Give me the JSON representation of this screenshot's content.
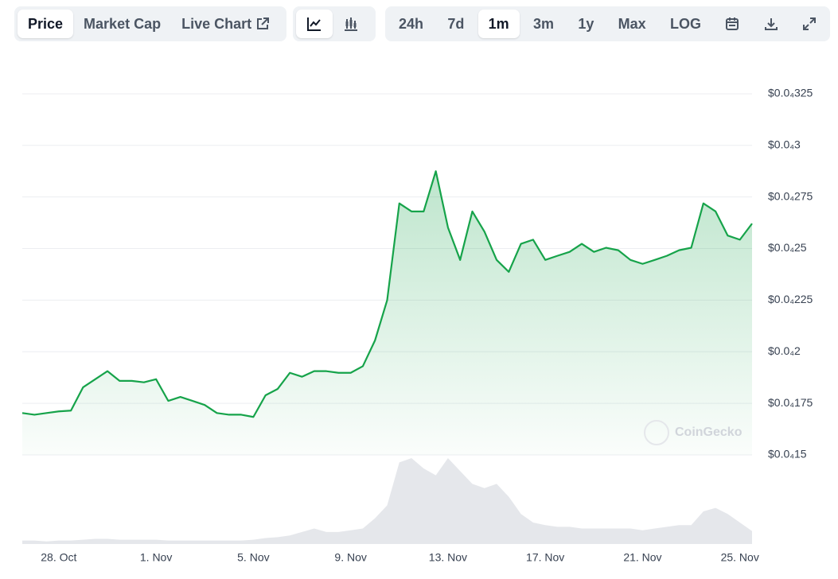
{
  "toolbar": {
    "view": [
      "Price",
      "Market Cap",
      "Live Chart"
    ],
    "ranges": [
      "24h",
      "7d",
      "1m",
      "3m",
      "1y",
      "Max",
      "LOG"
    ]
  },
  "chart_data": {
    "type": "line",
    "watermark": "CoinGecko",
    "categories": [
      null,
      null,
      null,
      "28. Oct",
      null,
      null,
      null,
      null,
      null,
      null,
      null,
      "1. Nov",
      null,
      null,
      null,
      null,
      null,
      null,
      null,
      "5. Nov",
      null,
      null,
      null,
      null,
      null,
      null,
      null,
      "9. Nov",
      null,
      null,
      null,
      null,
      null,
      null,
      null,
      "13. Nov",
      null,
      null,
      null,
      null,
      null,
      null,
      null,
      "17. Nov",
      null,
      null,
      null,
      null,
      null,
      null,
      null,
      "21. Nov",
      null,
      null,
      null,
      null,
      null,
      null,
      null,
      "25. Nov",
      null
    ],
    "values": [
      1.703e-05,
      1.695e-05,
      1.703e-05,
      1.711e-05,
      1.715e-05,
      1.828e-05,
      1.867e-05,
      1.906e-05,
      1.859e-05,
      1.859e-05,
      1.852e-05,
      1.867e-05,
      1.762e-05,
      1.781e-05,
      1.762e-05,
      1.742e-05,
      1.703e-05,
      1.695e-05,
      1.695e-05,
      1.684e-05,
      1.789e-05,
      1.82e-05,
      1.898e-05,
      1.879e-05,
      1.906e-05,
      1.906e-05,
      1.898e-05,
      1.898e-05,
      1.93e-05,
      2.055e-05,
      2.25e-05,
      2.719e-05,
      2.68e-05,
      2.68e-05,
      2.875e-05,
      2.602e-05,
      2.445e-05,
      2.68e-05,
      2.582e-05,
      2.445e-05,
      2.387e-05,
      2.523e-05,
      2.543e-05,
      2.445e-05,
      2.465e-05,
      2.484e-05,
      2.523e-05,
      2.484e-05,
      2.504e-05,
      2.492e-05,
      2.445e-05,
      2.426e-05,
      2.445e-05,
      2.465e-05,
      2.492e-05,
      2.504e-05,
      2.719e-05,
      2.68e-05,
      2.563e-05,
      2.543e-05,
      2.621e-05
    ],
    "color": "#16a34a",
    "volume": [
      4,
      4,
      3,
      4,
      4,
      5,
      6,
      6,
      5,
      5,
      5,
      5,
      4,
      4,
      4,
      4,
      4,
      4,
      4,
      5,
      7,
      8,
      10,
      14,
      18,
      14,
      14,
      16,
      18,
      30,
      45,
      95,
      100,
      88,
      80,
      100,
      85,
      70,
      65,
      70,
      55,
      35,
      25,
      22,
      20,
      20,
      18,
      18,
      18,
      18,
      18,
      16,
      18,
      20,
      22,
      22,
      38,
      42,
      35,
      25,
      15
    ],
    "volume_color": "#e5e7eb",
    "ylim": [
      1.5e-05,
      3.35e-05
    ],
    "yticks": [
      {
        "value": 1.5e-05,
        "label": "$0.0₄15"
      },
      {
        "value": 1.75e-05,
        "label": "$0.0₄175"
      },
      {
        "value": 2e-05,
        "label": "$0.0₄2"
      },
      {
        "value": 2.25e-05,
        "label": "$0.0₄225"
      },
      {
        "value": 2.5e-05,
        "label": "$0.0₄25"
      },
      {
        "value": 2.75e-05,
        "label": "$0.0₄275"
      },
      {
        "value": 3e-05,
        "label": "$0.0₄3"
      },
      {
        "value": 3.25e-05,
        "label": "$0.0₄325"
      }
    ],
    "grid": true
  }
}
